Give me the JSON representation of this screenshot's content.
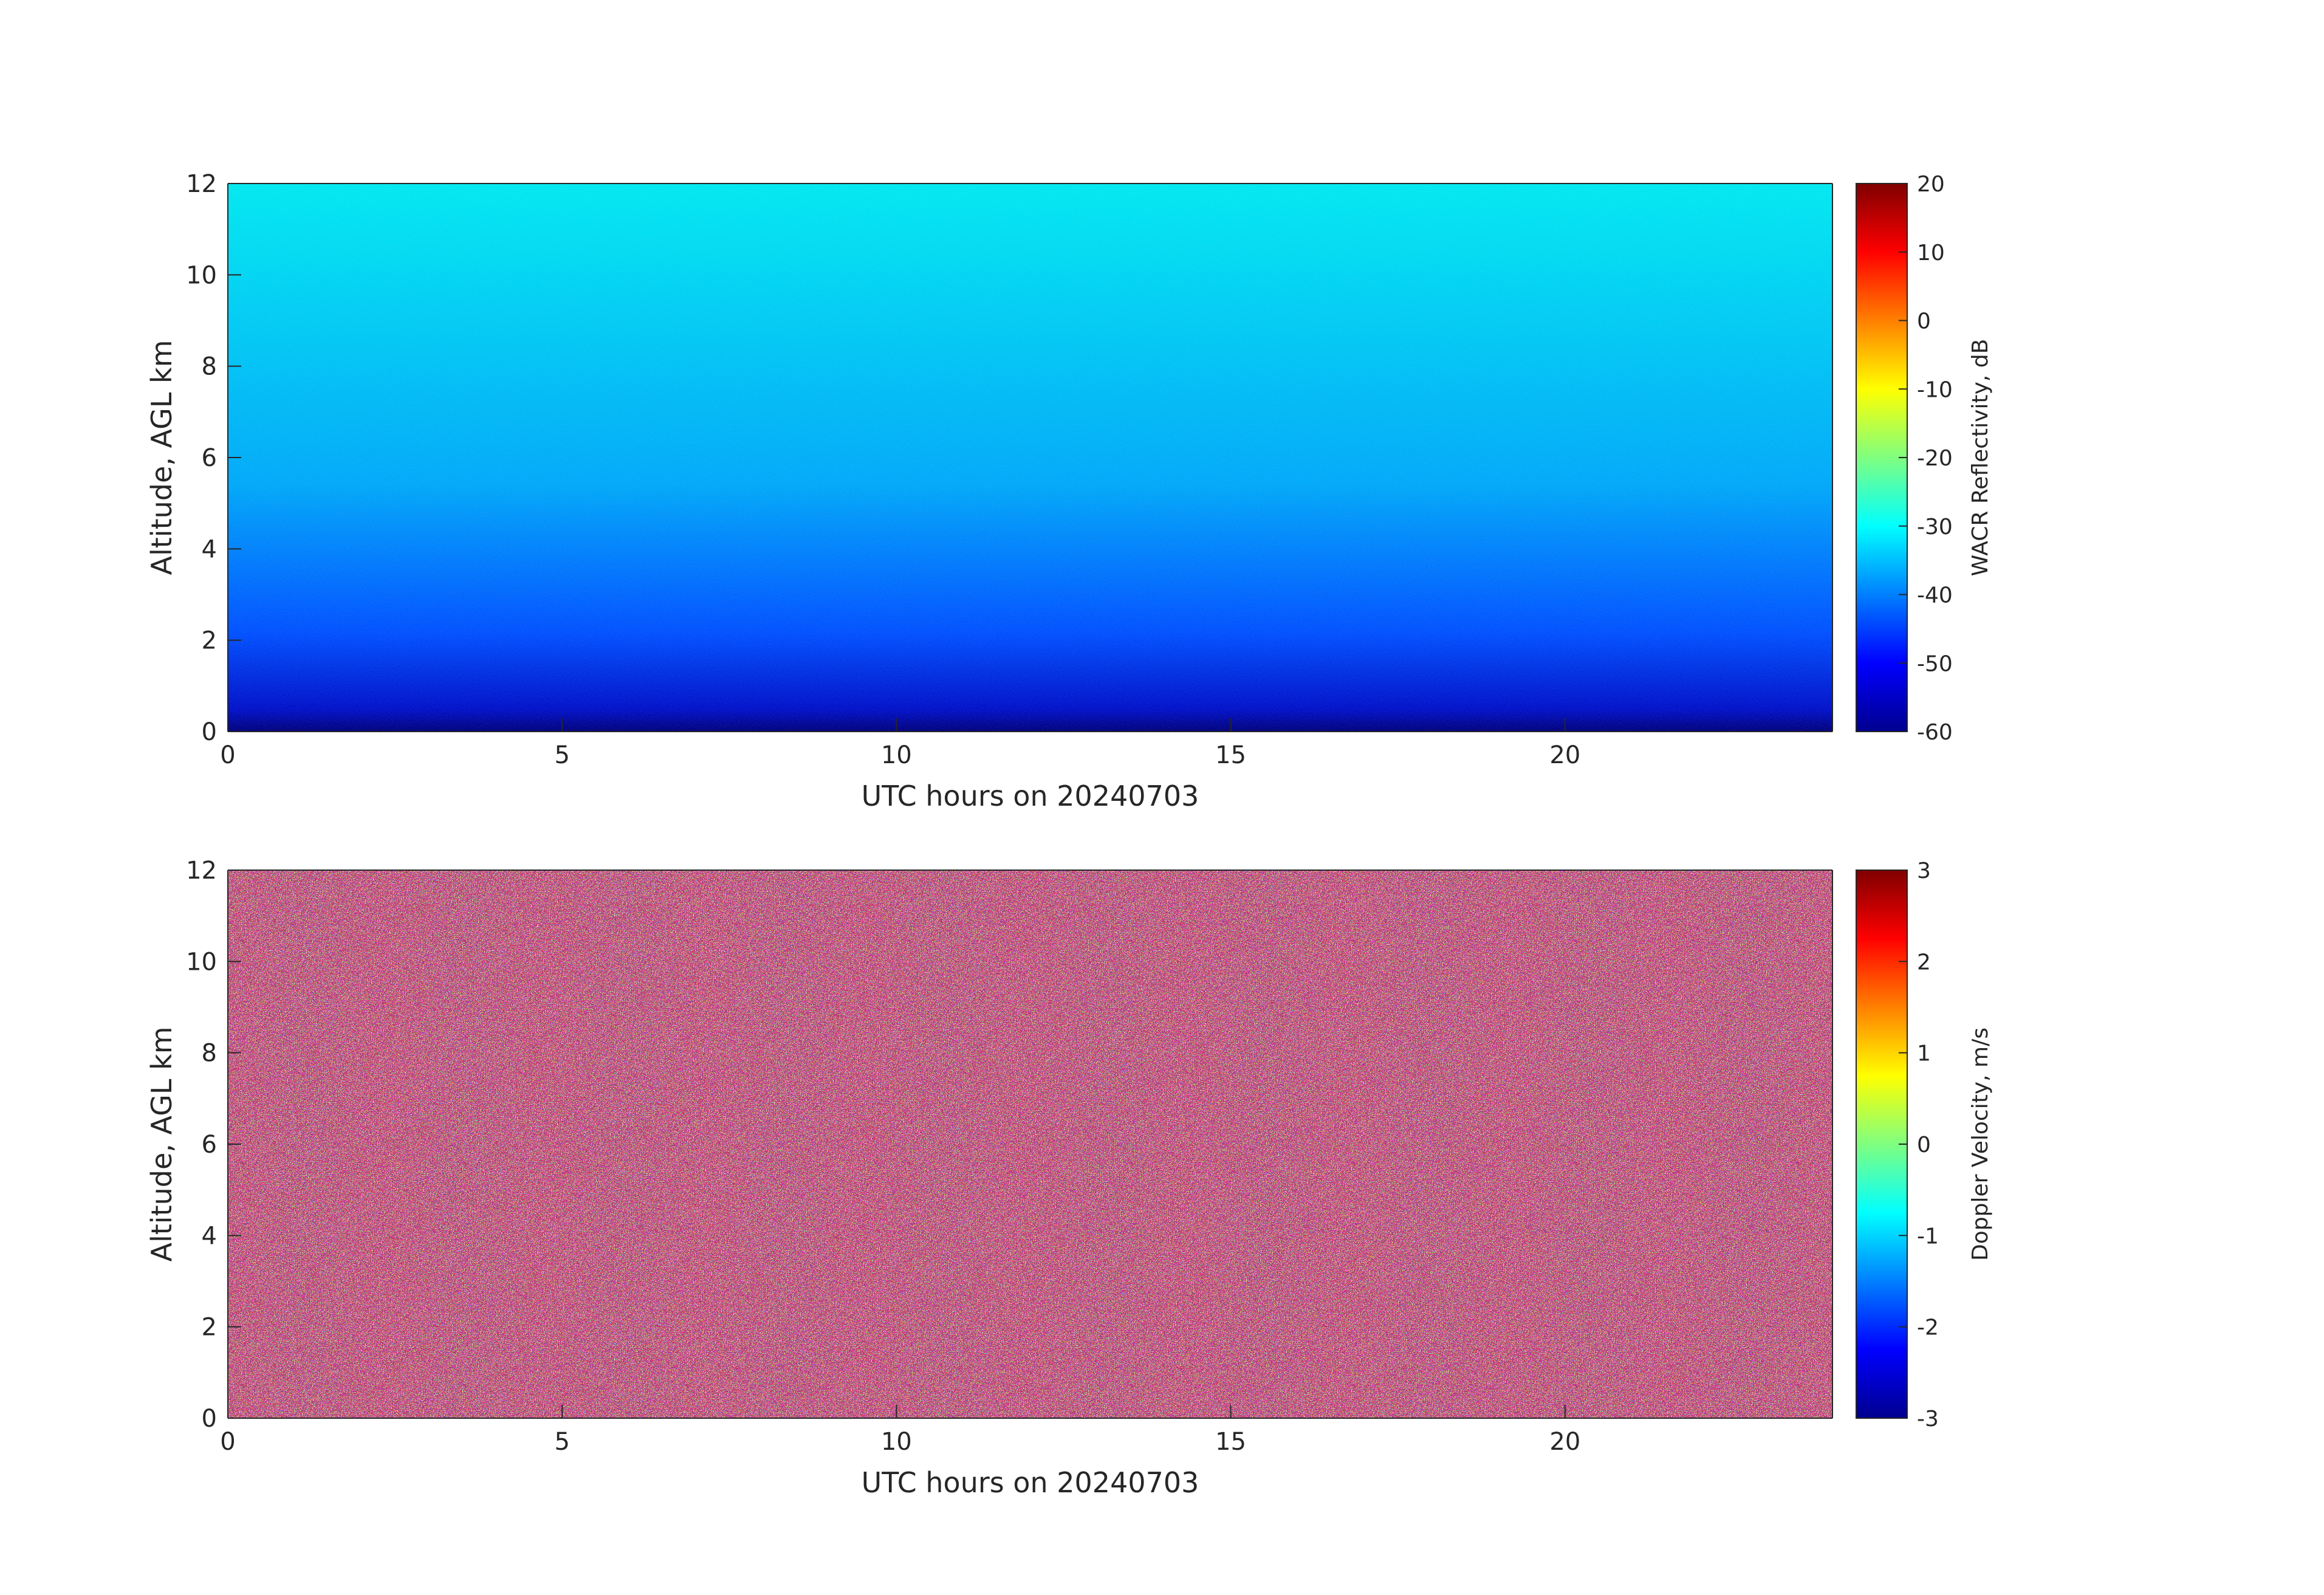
{
  "chart_data": [
    {
      "type": "heatmap",
      "colormap": "jet",
      "xlabel": "UTC hours on 20240703",
      "ylabel": "Altitude, AGL km",
      "xlim": [
        0,
        24
      ],
      "xticks": [
        0,
        5,
        10,
        15,
        20
      ],
      "ylim": [
        0,
        12
      ],
      "yticks": [
        0,
        2,
        4,
        6,
        8,
        10,
        12
      ],
      "colorbar": {
        "label": "WACR Reflectivity, dB",
        "lim": [
          -60,
          20
        ],
        "ticks": [
          -60,
          -50,
          -40,
          -30,
          -20,
          -10,
          0,
          10,
          20
        ]
      }
    },
    {
      "type": "heatmap",
      "colormap": "jet",
      "xlabel": "UTC hours on 20240703",
      "ylabel": "Altitude, AGL km",
      "xlim": [
        0,
        24
      ],
      "xticks": [
        0,
        5,
        10,
        15,
        20
      ],
      "ylim": [
        0,
        12
      ],
      "yticks": [
        0,
        2,
        4,
        6,
        8,
        10,
        12
      ],
      "colorbar": {
        "label": "Doppler Velocity, m/s",
        "lim": [
          -3,
          3
        ],
        "ticks": [
          -3,
          -2,
          -1,
          0,
          1,
          2,
          3
        ]
      }
    }
  ]
}
